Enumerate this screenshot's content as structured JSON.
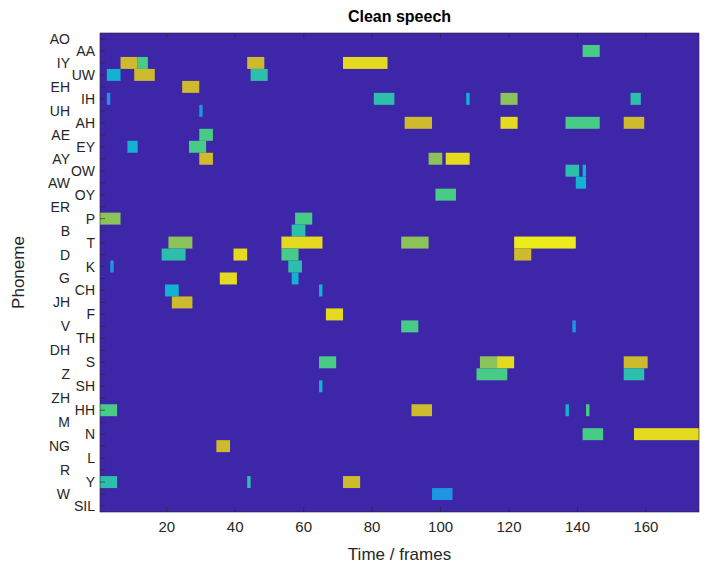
{
  "chart_data": {
    "type": "heatmap",
    "title": "Clean speech",
    "x_label": "Time / frames",
    "y_label": "Phoneme",
    "categories": [
      "AO",
      "AA",
      "IY",
      "UW",
      "EH",
      "IH",
      "UH",
      "AH",
      "AE",
      "EY",
      "AY",
      "OW",
      "AW",
      "OY",
      "ER",
      "P",
      "B",
      "T",
      "D",
      "K",
      "G",
      "CH",
      "JH",
      "F",
      "V",
      "TH",
      "DH",
      "S",
      "Z",
      "SH",
      "ZH",
      "HH",
      "M",
      "N",
      "NG",
      "L",
      "R",
      "Y",
      "W",
      "SIL"
    ],
    "xlim": [
      0.5,
      175.5
    ],
    "xticks": [
      20,
      40,
      60,
      80,
      100,
      120,
      140,
      160
    ],
    "clim": [
      0,
      1
    ],
    "cells": [
      {
        "phoneme": "AA",
        "start": 142,
        "end": 146,
        "value": 0.6
      },
      {
        "phoneme": "IY",
        "start": 7,
        "end": 11,
        "value": 0.8
      },
      {
        "phoneme": "IY",
        "start": 12,
        "end": 14,
        "value": 0.6
      },
      {
        "phoneme": "IY",
        "start": 44,
        "end": 48,
        "value": 0.8
      },
      {
        "phoneme": "IY",
        "start": 72,
        "end": 84,
        "value": 0.9
      },
      {
        "phoneme": "UW",
        "start": 3,
        "end": 6,
        "value": 0.4
      },
      {
        "phoneme": "UW",
        "start": 11,
        "end": 16,
        "value": 0.8
      },
      {
        "phoneme": "UW",
        "start": 45,
        "end": 49,
        "value": 0.5
      },
      {
        "phoneme": "EH",
        "start": 25,
        "end": 29,
        "value": 0.8
      },
      {
        "phoneme": "IH",
        "start": 3,
        "end": 3,
        "value": 0.3
      },
      {
        "phoneme": "IH",
        "start": 81,
        "end": 86,
        "value": 0.5
      },
      {
        "phoneme": "IH",
        "start": 108,
        "end": 108,
        "value": 0.4
      },
      {
        "phoneme": "IH",
        "start": 118,
        "end": 122,
        "value": 0.7
      },
      {
        "phoneme": "IH",
        "start": 156,
        "end": 158,
        "value": 0.5
      },
      {
        "phoneme": "UH",
        "start": 30,
        "end": 30,
        "value": 0.3
      },
      {
        "phoneme": "AH",
        "start": 90,
        "end": 97,
        "value": 0.8
      },
      {
        "phoneme": "AH",
        "start": 118,
        "end": 122,
        "value": 0.9
      },
      {
        "phoneme": "AH",
        "start": 137,
        "end": 146,
        "value": 0.6
      },
      {
        "phoneme": "AH",
        "start": 154,
        "end": 159,
        "value": 0.8
      },
      {
        "phoneme": "AE",
        "start": 30,
        "end": 33,
        "value": 0.6
      },
      {
        "phoneme": "EY",
        "start": 9,
        "end": 11,
        "value": 0.4
      },
      {
        "phoneme": "EY",
        "start": 27,
        "end": 31,
        "value": 0.6
      },
      {
        "phoneme": "AY",
        "start": 30,
        "end": 33,
        "value": 0.8
      },
      {
        "phoneme": "AY",
        "start": 97,
        "end": 100,
        "value": 0.7
      },
      {
        "phoneme": "AY",
        "start": 102,
        "end": 108,
        "value": 0.9
      },
      {
        "phoneme": "OW",
        "start": 137,
        "end": 140,
        "value": 0.5
      },
      {
        "phoneme": "OW",
        "start": 142,
        "end": 142,
        "value": 0.4
      },
      {
        "phoneme": "AW",
        "start": 140,
        "end": 142,
        "value": 0.4
      },
      {
        "phoneme": "OY",
        "start": 99,
        "end": 104,
        "value": 0.6
      },
      {
        "phoneme": "P",
        "start": 1,
        "end": 6,
        "value": 0.7
      },
      {
        "phoneme": "P",
        "start": 58,
        "end": 62,
        "value": 0.6
      },
      {
        "phoneme": "B",
        "start": 57,
        "end": 60,
        "value": 0.5
      },
      {
        "phoneme": "T",
        "start": 21,
        "end": 27,
        "value": 0.7
      },
      {
        "phoneme": "T",
        "start": 54,
        "end": 65,
        "value": 0.9
      },
      {
        "phoneme": "T",
        "start": 89,
        "end": 96,
        "value": 0.7
      },
      {
        "phoneme": "T",
        "start": 122,
        "end": 139,
        "value": 0.95
      },
      {
        "phoneme": "D",
        "start": 19,
        "end": 25,
        "value": 0.5
      },
      {
        "phoneme": "D",
        "start": 40,
        "end": 43,
        "value": 0.9
      },
      {
        "phoneme": "D",
        "start": 54,
        "end": 58,
        "value": 0.6
      },
      {
        "phoneme": "D",
        "start": 122,
        "end": 126,
        "value": 0.8
      },
      {
        "phoneme": "K",
        "start": 4,
        "end": 4,
        "value": 0.3
      },
      {
        "phoneme": "K",
        "start": 56,
        "end": 59,
        "value": 0.5
      },
      {
        "phoneme": "G",
        "start": 36,
        "end": 40,
        "value": 0.9
      },
      {
        "phoneme": "G",
        "start": 57,
        "end": 58,
        "value": 0.4
      },
      {
        "phoneme": "CH",
        "start": 20,
        "end": 23,
        "value": 0.4
      },
      {
        "phoneme": "CH",
        "start": 65,
        "end": 65,
        "value": 0.4
      },
      {
        "phoneme": "JH",
        "start": 22,
        "end": 27,
        "value": 0.8
      },
      {
        "phoneme": "F",
        "start": 67,
        "end": 71,
        "value": 0.9
      },
      {
        "phoneme": "V",
        "start": 89,
        "end": 93,
        "value": 0.6
      },
      {
        "phoneme": "V",
        "start": 139,
        "end": 139,
        "value": 0.3
      },
      {
        "phoneme": "S",
        "start": 65,
        "end": 69,
        "value": 0.6
      },
      {
        "phoneme": "S",
        "start": 112,
        "end": 116,
        "value": 0.7
      },
      {
        "phoneme": "S",
        "start": 117,
        "end": 121,
        "value": 0.9
      },
      {
        "phoneme": "S",
        "start": 154,
        "end": 160,
        "value": 0.8
      },
      {
        "phoneme": "Z",
        "start": 111,
        "end": 119,
        "value": 0.6
      },
      {
        "phoneme": "Z",
        "start": 154,
        "end": 159,
        "value": 0.5
      },
      {
        "phoneme": "SH",
        "start": 65,
        "end": 65,
        "value": 0.4
      },
      {
        "phoneme": "HH",
        "start": 1,
        "end": 5,
        "value": 0.6
      },
      {
        "phoneme": "HH",
        "start": 92,
        "end": 97,
        "value": 0.8
      },
      {
        "phoneme": "HH",
        "start": 137,
        "end": 137,
        "value": 0.4
      },
      {
        "phoneme": "HH",
        "start": 143,
        "end": 143,
        "value": 0.6
      },
      {
        "phoneme": "N",
        "start": 142,
        "end": 147,
        "value": 0.6
      },
      {
        "phoneme": "N",
        "start": 157,
        "end": 175,
        "value": 0.9
      },
      {
        "phoneme": "NG",
        "start": 35,
        "end": 38,
        "value": 0.8
      },
      {
        "phoneme": "Y",
        "start": 1,
        "end": 5,
        "value": 0.5
      },
      {
        "phoneme": "Y",
        "start": 44,
        "end": 44,
        "value": 0.5
      },
      {
        "phoneme": "Y",
        "start": 72,
        "end": 76,
        "value": 0.8
      },
      {
        "phoneme": "W",
        "start": 98,
        "end": 103,
        "value": 0.3
      }
    ]
  }
}
